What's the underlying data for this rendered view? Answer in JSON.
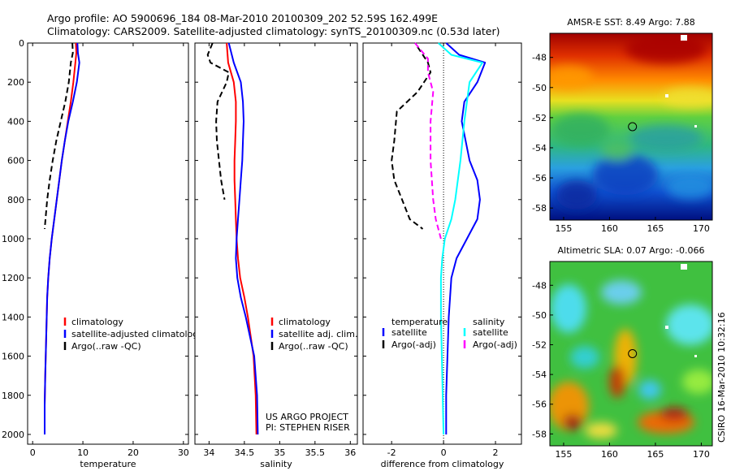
{
  "header": {
    "line1": "Argo profile: AO 5900696_184 08-Mar-2010 20100309_202 52.59S 162.499E",
    "line2": "Climatology: CARS2009. Satellite-adjusted climatology: synTS_20100309.nc (0.53d later)"
  },
  "footer": {
    "project_line1": "US ARGO PROJECT",
    "project_line2": "PI: STEPHEN RISER",
    "stamp": "CSIRO 16-Mar-2010 10:32:16"
  },
  "colors": {
    "red": "#ff0000",
    "blue": "#0000ff",
    "black": "#000000",
    "cyan": "#00ffff",
    "magenta": "#ff00ff"
  },
  "chart_data": [
    {
      "type": "line",
      "id": "temperature",
      "xlabel": "temperature",
      "xlim": [
        -1,
        31
      ],
      "ylim": [
        0,
        2050
      ],
      "y_reversed": true,
      "xticks": [
        0,
        10,
        20,
        30
      ],
      "yticks": [
        0,
        200,
        400,
        600,
        800,
        1000,
        1200,
        1400,
        1600,
        1800,
        2000
      ],
      "legend_position": "lower-right",
      "series": [
        {
          "name": "climatology",
          "color": "red",
          "style": "solid",
          "x": [
            8.6,
            8.7,
            8.5,
            8.1,
            7.6,
            7.0,
            6.4,
            5.8,
            5.3,
            4.8,
            4.3,
            3.8,
            3.4,
            3.1,
            2.9,
            2.8,
            2.7,
            2.6,
            2.5,
            2.4,
            2.4
          ],
          "y": [
            0,
            50,
            100,
            200,
            300,
            400,
            500,
            600,
            700,
            800,
            900,
            1000,
            1100,
            1200,
            1300,
            1400,
            1500,
            1600,
            1700,
            1850,
            2000
          ]
        },
        {
          "name": "satellite-adjusted climatology",
          "color": "blue",
          "style": "solid",
          "x": [
            8.9,
            9.0,
            9.3,
            8.8,
            8.0,
            7.1,
            6.4,
            5.8,
            5.3,
            4.8,
            4.3,
            3.8,
            3.4,
            3.1,
            2.9,
            2.8,
            2.7,
            2.6,
            2.5,
            2.4,
            2.4
          ],
          "y": [
            0,
            50,
            100,
            200,
            300,
            400,
            500,
            600,
            700,
            800,
            900,
            1000,
            1100,
            1200,
            1300,
            1400,
            1500,
            1600,
            1700,
            1850,
            2000
          ]
        },
        {
          "name": "Argo(..raw -QC)",
          "color": "black",
          "style": "dashed",
          "x": [
            7.9,
            8.0,
            7.6,
            7.2,
            6.5,
            5.6,
            4.7,
            4.0,
            3.4,
            2.9,
            2.4
          ],
          "y": [
            0,
            50,
            100,
            200,
            300,
            400,
            500,
            600,
            700,
            800,
            950
          ]
        }
      ]
    },
    {
      "type": "line",
      "id": "salinity",
      "xlabel": "salinity",
      "xlim": [
        33.8,
        36.1
      ],
      "ylim": [
        0,
        2050
      ],
      "y_reversed": true,
      "xticks": [
        34,
        34.5,
        35,
        35.5,
        36
      ],
      "legend_position": "lower-right",
      "series": [
        {
          "name": "climatology",
          "color": "red",
          "style": "solid",
          "x": [
            34.25,
            34.27,
            34.35,
            34.38,
            34.38,
            34.37,
            34.36,
            34.36,
            34.37,
            34.38,
            34.39,
            34.41,
            34.44,
            34.5,
            34.55,
            34.59,
            34.63,
            34.66,
            34.67
          ],
          "y": [
            0,
            100,
            200,
            300,
            400,
            500,
            600,
            700,
            800,
            900,
            1000,
            1100,
            1200,
            1300,
            1400,
            1500,
            1600,
            1800,
            2000
          ]
        },
        {
          "name": "satellite adj. clim.",
          "color": "blue",
          "style": "solid",
          "x": [
            34.28,
            34.35,
            34.45,
            34.48,
            34.49,
            34.48,
            34.47,
            34.45,
            34.43,
            34.41,
            34.39,
            34.38,
            34.4,
            34.45,
            34.52,
            34.58,
            34.64,
            34.68,
            34.69
          ],
          "y": [
            0,
            100,
            200,
            300,
            400,
            500,
            600,
            700,
            800,
            900,
            1000,
            1100,
            1200,
            1300,
            1400,
            1500,
            1600,
            1800,
            2000
          ]
        },
        {
          "name": "Argo(..raw -QC)",
          "color": "black",
          "style": "dashed",
          "x": [
            34.05,
            33.98,
            34.02,
            34.28,
            34.25,
            34.12,
            34.1,
            34.11,
            34.14,
            34.17,
            34.22
          ],
          "y": [
            0,
            60,
            100,
            150,
            200,
            300,
            400,
            500,
            600,
            700,
            800
          ]
        }
      ]
    },
    {
      "type": "line",
      "id": "difference",
      "xlabel": "difference from climatology",
      "xlim": [
        -3.1,
        3.0
      ],
      "ylim": [
        0,
        2050
      ],
      "y_reversed": true,
      "xticks": [
        -2,
        0,
        2
      ],
      "zero_line": "dotted",
      "legend_position": "lower-center",
      "legend_headers": [
        "temperature",
        "salinity"
      ],
      "series": [
        {
          "name": "satellite",
          "group": "temperature",
          "color": "blue",
          "style": "solid",
          "x": [
            0.1,
            0.6,
            1.6,
            1.3,
            0.8,
            0.7,
            1.0,
            1.3,
            1.4,
            1.3,
            0.9,
            0.5,
            0.3,
            0.2,
            0.15,
            0.1,
            0.1
          ],
          "y": [
            0,
            60,
            100,
            200,
            300,
            400,
            600,
            700,
            800,
            900,
            1000,
            1100,
            1200,
            1400,
            1600,
            1800,
            2000
          ]
        },
        {
          "name": "Argo(-adj)",
          "group": "temperature",
          "color": "black",
          "style": "dashed",
          "x": [
            -1.0,
            -0.6,
            -0.5,
            -1.0,
            -1.8,
            -1.9,
            -2.0,
            -1.9,
            -1.6,
            -1.3,
            -0.8
          ],
          "y": [
            20,
            100,
            150,
            250,
            350,
            500,
            600,
            700,
            800,
            900,
            950
          ]
        },
        {
          "name": "satellite",
          "group": "salinity",
          "color": "cyan",
          "style": "solid",
          "x": [
            -0.2,
            0.3,
            1.5,
            1.0,
            0.9,
            0.8,
            0.65,
            0.45,
            0.3,
            0.05,
            -0.05,
            -0.1,
            -0.1,
            -0.05,
            0.0
          ],
          "y": [
            0,
            60,
            100,
            200,
            300,
            400,
            600,
            800,
            900,
            1000,
            1100,
            1200,
            1400,
            1700,
            2000
          ]
        },
        {
          "name": "Argo(-adj)",
          "group": "salinity",
          "color": "magenta",
          "style": "dashed",
          "x": [
            -1.1,
            -0.6,
            -0.6,
            -0.4,
            -0.5,
            -0.5,
            -0.4,
            -0.3,
            -0.1
          ],
          "y": [
            0,
            80,
            150,
            250,
            400,
            600,
            800,
            900,
            1000
          ]
        }
      ]
    },
    {
      "type": "heatmap",
      "id": "amsre-sst",
      "title": "AMSR-E SST: 8.49  Argo: 7.88",
      "xticks": [
        155,
        160,
        165,
        170
      ],
      "yticks": [
        -48,
        -50,
        -52,
        -54,
        -56,
        -58
      ],
      "xlim": [
        153.5,
        171.2
      ],
      "ylim": [
        -58.8,
        -46.4
      ],
      "marker": {
        "lon": 162.5,
        "lat": -52.6
      }
    },
    {
      "type": "heatmap",
      "id": "altimetric-sla",
      "title": "Altimetric SLA: 0.07  Argo: -0.066",
      "xticks": [
        155,
        160,
        165,
        170
      ],
      "yticks": [
        -48,
        -50,
        -52,
        -54,
        -56,
        -58
      ],
      "xlim": [
        153.5,
        171.2
      ],
      "ylim": [
        -58.8,
        -46.4
      ],
      "marker": {
        "lon": 162.5,
        "lat": -52.6
      }
    }
  ]
}
